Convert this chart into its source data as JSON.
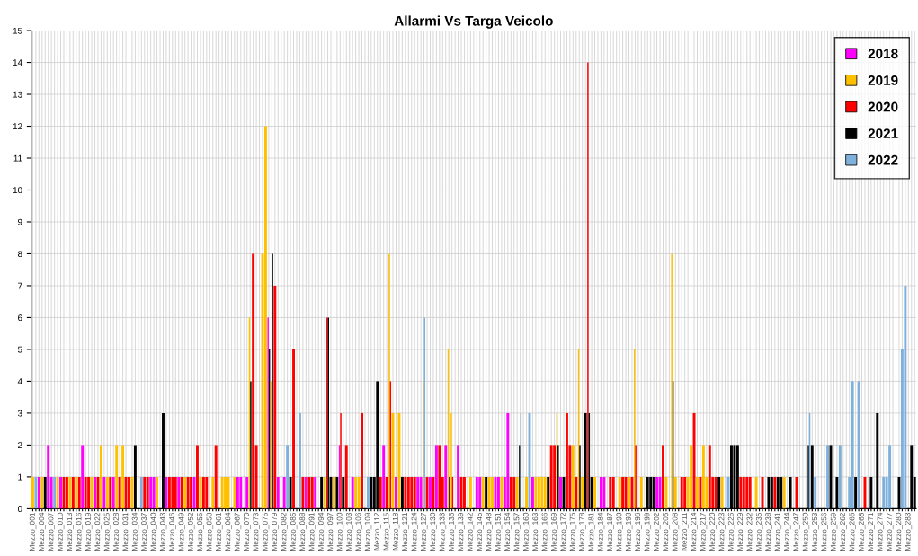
{
  "chart_data": {
    "type": "bar",
    "title": "Allarmi Vs Targa Veicolo",
    "categories": [
      "Mezzo_001",
      null,
      null,
      "Mezzo_004",
      null,
      null,
      "Mezzo_007",
      null,
      null,
      "Mezzo_010",
      null,
      null,
      "Mezzo_013",
      null,
      null,
      "Mezzo_016",
      null,
      null,
      "Mezzo_019",
      null,
      null,
      "Mezzo_022",
      null,
      null,
      "Mezzo_025",
      null,
      null,
      "Mezzo_028",
      null,
      null,
      "Mezzo_031",
      null,
      null,
      "Mezzo_034",
      null,
      null,
      "Mezzo_037",
      null,
      null,
      "Mezzo_040",
      null,
      null,
      "Mezzo_043",
      null,
      null,
      "Mezzo_046",
      null,
      null,
      "Mezzo_049",
      null,
      null,
      "Mezzo_052",
      null,
      null,
      "Mezzo_055",
      null,
      null,
      "Mezzo_058",
      null,
      null,
      "Mezzo_061",
      null,
      null,
      "Mezzo_064",
      null,
      null,
      "Mezzo_067",
      null,
      null,
      "Mezzo_070",
      null,
      null,
      "Mezzo_073",
      null,
      null,
      "Mezzo_076",
      null,
      null,
      "Mezzo_079",
      null,
      null,
      "Mezzo_082",
      null,
      null,
      "Mezzo_085",
      null,
      null,
      "Mezzo_088",
      null,
      null,
      "Mezzo_091",
      null,
      null,
      "Mezzo_094",
      null,
      null,
      "Mezzo_097",
      null,
      null,
      "Mezzo_100",
      null,
      null,
      "Mezzo_103",
      null,
      null,
      "Mezzo_106",
      null,
      null,
      "Mezzo_109",
      null,
      null,
      "Mezzo_112",
      null,
      null,
      "Mezzo_115",
      null,
      null,
      "Mezzo_118",
      null,
      null,
      "Mezzo_121",
      null,
      null,
      "Mezzo_124",
      null,
      null,
      "Mezzo_127",
      null,
      null,
      "Mezzo_130",
      null,
      null,
      "Mezzo_133",
      null,
      null,
      "Mezzo_136",
      null,
      null,
      "Mezzo_139",
      null,
      null,
      "Mezzo_142",
      null,
      null,
      "Mezzo_145",
      null,
      null,
      "Mezzo_148",
      null,
      null,
      "Mezzo_151",
      null,
      null,
      "Mezzo_154",
      null,
      null,
      "Mezzo_157",
      null,
      null,
      "Mezzo_160",
      null,
      null,
      "Mezzo_163",
      null,
      null,
      "Mezzo_166",
      null,
      null,
      "Mezzo_169",
      null,
      null,
      "Mezzo_172",
      null,
      null,
      "Mezzo_175",
      null,
      null,
      "Mezzo_178",
      null,
      null,
      "Mezzo_181",
      null,
      null,
      "Mezzo_184",
      null,
      null,
      "Mezzo_187",
      null,
      null,
      "Mezzo_190",
      null,
      null,
      "Mezzo_193",
      null,
      null,
      "Mezzo_196",
      null,
      null,
      "Mezzo_199",
      null,
      null,
      "Mezzo_202",
      null,
      null,
      "Mezzo_205",
      null,
      null,
      "Mezzo_208",
      null,
      null,
      "Mezzo_211",
      null,
      null,
      "Mezzo_214",
      null,
      null,
      "Mezzo_217",
      null,
      null,
      "Mezzo_220",
      null,
      null,
      "Mezzo_223",
      null,
      null,
      "Mezzo_226",
      null,
      null,
      "Mezzo_229",
      null,
      null,
      "Mezzo_232",
      null,
      null,
      "Mezzo_235",
      null,
      null,
      "Mezzo_238",
      null,
      null,
      "Mezzo_241",
      null,
      null,
      "Mezzo_244",
      null,
      null,
      "Mezzo_247",
      null,
      null,
      "Mezzo_250",
      null,
      null,
      "Mezzo_253",
      null,
      null,
      "Mezzo_256",
      null,
      null,
      "Mezzo_259",
      null,
      null,
      "Mezzo_262",
      null,
      null,
      "Mezzo_265",
      null,
      null,
      "Mezzo_268",
      null,
      null,
      "Mezzo_271",
      null,
      null,
      "Mezzo_274",
      null,
      null,
      "Mezzo_277",
      null,
      null,
      "Mezzo_280",
      null,
      null,
      "Mezzo_283",
      null,
      null
    ],
    "series": [
      {
        "name": "2018",
        "color": "#ff00ff",
        "values": [
          null,
          null,
          1,
          null,
          null,
          2,
          1,
          null,
          null,
          1,
          null,
          null,
          null,
          null,
          null,
          null,
          2,
          null,
          null,
          null,
          1,
          null,
          null,
          1,
          null,
          null,
          1,
          null,
          null,
          null,
          null,
          null,
          null,
          null,
          null,
          null,
          null,
          null,
          1,
          1,
          null,
          null,
          null,
          1,
          null,
          null,
          null,
          1,
          null,
          null,
          null,
          null,
          1,
          null,
          null,
          null,
          null,
          null,
          null,
          null,
          null,
          null,
          null,
          null,
          null,
          null,
          1,
          1,
          null,
          1,
          null,
          null,
          null,
          null,
          null,
          null,
          6,
          null,
          null,
          1,
          null,
          1,
          null,
          null,
          null,
          null,
          null,
          null,
          1,
          null,
          null,
          1,
          null,
          null,
          null,
          null,
          null,
          null,
          null,
          2,
          null,
          null,
          null,
          1,
          null,
          null,
          null,
          null,
          null,
          null,
          null,
          null,
          null,
          2,
          null,
          null,
          null,
          1,
          null,
          null,
          null,
          null,
          null,
          null,
          1,
          1,
          null,
          null,
          1,
          null,
          2,
          null,
          null,
          2,
          null,
          null,
          null,
          2,
          null,
          null,
          null,
          null,
          null,
          1,
          1,
          null,
          null,
          null,
          null,
          1,
          1,
          null,
          1,
          3,
          null,
          null,
          null,
          null,
          null,
          null,
          null,
          1,
          null,
          null,
          null,
          null,
          null,
          null,
          null,
          null,
          1,
          null,
          null,
          null,
          null,
          null,
          null,
          null,
          null,
          null,
          null,
          null,
          null,
          1,
          1,
          null,
          null,
          null,
          null,
          null,
          null,
          null,
          null,
          null,
          null,
          null,
          null,
          null,
          null,
          null,
          null,
          1,
          1,
          null,
          null,
          null,
          null,
          null,
          null,
          null,
          null,
          null,
          null,
          null,
          null,
          null,
          null,
          null,
          null,
          null,
          null,
          null,
          null,
          null,
          null,
          null,
          null,
          null,
          null,
          null,
          null,
          null,
          null,
          null,
          null,
          null,
          null,
          null,
          null,
          null,
          null,
          null,
          null,
          null,
          null,
          null,
          null,
          null,
          null,
          null,
          null,
          null,
          null,
          null,
          null,
          null,
          null,
          null,
          null,
          null,
          null,
          null,
          null,
          null,
          null,
          null,
          null,
          null,
          null,
          null,
          null,
          null,
          null,
          null,
          null,
          null,
          null,
          null,
          null,
          null,
          null,
          null,
          null,
          null,
          null
        ]
      },
      {
        "name": "2019",
        "color": "#ffc000",
        "values": [
          1,
          null,
          null,
          1,
          null,
          null,
          null,
          null,
          1,
          null,
          null,
          null,
          1,
          null,
          1,
          null,
          null,
          null,
          null,
          1,
          null,
          null,
          2,
          null,
          1,
          null,
          null,
          2,
          null,
          2,
          null,
          null,
          1,
          null,
          null,
          null,
          null,
          null,
          null,
          null,
          1,
          null,
          null,
          null,
          null,
          null,
          null,
          null,
          null,
          1,
          null,
          null,
          null,
          null,
          1,
          null,
          null,
          null,
          1,
          null,
          null,
          1,
          1,
          1,
          null,
          1,
          null,
          null,
          null,
          null,
          6,
          null,
          null,
          null,
          8,
          12,
          null,
          4,
          null,
          null,
          null,
          null,
          null,
          null,
          null,
          null,
          null,
          null,
          null,
          null,
          null,
          null,
          null,
          null,
          1,
          null,
          null,
          1,
          null,
          null,
          null,
          null,
          null,
          null,
          1,
          1,
          null,
          null,
          null,
          null,
          null,
          null,
          null,
          null,
          null,
          8,
          3,
          null,
          3,
          null,
          null,
          null,
          null,
          null,
          null,
          null,
          4,
          null,
          null,
          null,
          null,
          null,
          null,
          null,
          5,
          3,
          null,
          null,
          null,
          null,
          null,
          1,
          null,
          null,
          null,
          1,
          null,
          1,
          1,
          null,
          null,
          1,
          null,
          null,
          null,
          null,
          1,
          null,
          null,
          1,
          null,
          null,
          1,
          1,
          1,
          1,
          null,
          null,
          null,
          3,
          null,
          null,
          null,
          null,
          2,
          null,
          5,
          1,
          null,
          null,
          null,
          1,
          null,
          null,
          null,
          null,
          null,
          null,
          null,
          1,
          null,
          null,
          1,
          null,
          5,
          null,
          1,
          null,
          null,
          null,
          null,
          null,
          null,
          null,
          1,
          null,
          8,
          1,
          null,
          null,
          null,
          1,
          2,
          null,
          1,
          null,
          2,
          1,
          null,
          null,
          null,
          null,
          1,
          null,
          null,
          null,
          null,
          null,
          null,
          null,
          null,
          null,
          null,
          1,
          null,
          null,
          null,
          null,
          null,
          null,
          null,
          null,
          1,
          null,
          null,
          null,
          null,
          null,
          null,
          null,
          null,
          null,
          null,
          null,
          null,
          null,
          null,
          null,
          null,
          null,
          null,
          null,
          null,
          null,
          null,
          null,
          null,
          null,
          null,
          null,
          null,
          null,
          null,
          null,
          null,
          null,
          null,
          null,
          null,
          null,
          null,
          null,
          null,
          null,
          null
        ]
      },
      {
        "name": "2020",
        "color": "#ff0000",
        "values": [
          null,
          null,
          null,
          null,
          null,
          null,
          null,
          null,
          null,
          null,
          1,
          1,
          null,
          1,
          null,
          1,
          null,
          1,
          1,
          null,
          null,
          1,
          null,
          null,
          null,
          1,
          null,
          null,
          1,
          null,
          1,
          1,
          null,
          null,
          null,
          null,
          1,
          1,
          null,
          null,
          null,
          null,
          null,
          null,
          1,
          1,
          1,
          null,
          1,
          null,
          1,
          1,
          null,
          2,
          null,
          1,
          1,
          null,
          null,
          2,
          null,
          null,
          null,
          null,
          null,
          null,
          null,
          null,
          null,
          null,
          null,
          8,
          2,
          null,
          null,
          null,
          null,
          null,
          7,
          null,
          null,
          null,
          null,
          null,
          5,
          null,
          null,
          1,
          null,
          1,
          1,
          null,
          null,
          null,
          null,
          6,
          null,
          null,
          null,
          3,
          null,
          2,
          null,
          null,
          null,
          null,
          3,
          null,
          null,
          null,
          null,
          null,
          1,
          null,
          1,
          4,
          null,
          null,
          null,
          null,
          1,
          1,
          1,
          1,
          null,
          null,
          null,
          1,
          null,
          1,
          null,
          2,
          1,
          null,
          null,
          1,
          null,
          null,
          1,
          1,
          null,
          null,
          null,
          null,
          null,
          null,
          null,
          null,
          null,
          null,
          null,
          null,
          null,
          null,
          1,
          1,
          null,
          null,
          null,
          null,
          null,
          null,
          null,
          null,
          null,
          null,
          null,
          2,
          2,
          null,
          null,
          null,
          3,
          2,
          null,
          1,
          null,
          null,
          null,
          14,
          null,
          null,
          null,
          null,
          null,
          null,
          1,
          1,
          null,
          null,
          1,
          1,
          null,
          1,
          2,
          null,
          null,
          null,
          null,
          null,
          null,
          null,
          null,
          2,
          null,
          null,
          null,
          null,
          null,
          1,
          1,
          null,
          null,
          3,
          null,
          1,
          null,
          null,
          2,
          1,
          1,
          null,
          null,
          null,
          null,
          null,
          null,
          null,
          1,
          1,
          1,
          1,
          null,
          null,
          null,
          1,
          null,
          null,
          null,
          1,
          null,
          null,
          null,
          null,
          null,
          null,
          1,
          null,
          null,
          null,
          null,
          null,
          null,
          null,
          null,
          null,
          null,
          null,
          null,
          null,
          null,
          null,
          null,
          null,
          null,
          null,
          null,
          null,
          1,
          null,
          null,
          null,
          null,
          null,
          null,
          null,
          null,
          null,
          null,
          null,
          null,
          null,
          null,
          null,
          null
        ]
      },
      {
        "name": "2021",
        "color": "#000000",
        "values": [
          null,
          null,
          null,
          null,
          1,
          null,
          null,
          null,
          null,
          null,
          null,
          null,
          null,
          null,
          null,
          null,
          null,
          null,
          null,
          null,
          null,
          null,
          null,
          null,
          null,
          null,
          null,
          null,
          null,
          null,
          null,
          null,
          null,
          2,
          null,
          null,
          null,
          null,
          null,
          null,
          null,
          null,
          3,
          null,
          null,
          null,
          null,
          null,
          null,
          null,
          null,
          null,
          null,
          null,
          null,
          null,
          null,
          null,
          null,
          null,
          null,
          null,
          null,
          null,
          null,
          null,
          null,
          null,
          null,
          null,
          4,
          null,
          null,
          null,
          null,
          null,
          5,
          8,
          null,
          null,
          null,
          null,
          null,
          1,
          null,
          null,
          null,
          null,
          null,
          null,
          null,
          null,
          null,
          1,
          null,
          6,
          1,
          null,
          1,
          null,
          1,
          null,
          null,
          null,
          null,
          null,
          null,
          null,
          null,
          1,
          1,
          4,
          null,
          null,
          null,
          null,
          null,
          null,
          null,
          1,
          null,
          null,
          null,
          null,
          null,
          null,
          null,
          null,
          null,
          null,
          null,
          null,
          null,
          null,
          1,
          null,
          null,
          null,
          null,
          null,
          null,
          null,
          null,
          null,
          null,
          null,
          1,
          null,
          null,
          null,
          null,
          null,
          null,
          null,
          null,
          null,
          null,
          2,
          null,
          null,
          null,
          null,
          null,
          null,
          null,
          null,
          1,
          null,
          null,
          2,
          null,
          1,
          null,
          null,
          null,
          null,
          2,
          null,
          3,
          3,
          1,
          null,
          null,
          null,
          null,
          null,
          null,
          null,
          null,
          null,
          null,
          null,
          null,
          null,
          null,
          null,
          null,
          null,
          1,
          1,
          1,
          null,
          null,
          null,
          null,
          null,
          4,
          null,
          null,
          null,
          null,
          null,
          null,
          null,
          null,
          null,
          null,
          null,
          null,
          null,
          null,
          1,
          null,
          null,
          null,
          2,
          2,
          2,
          null,
          null,
          null,
          null,
          null,
          null,
          null,
          null,
          null,
          1,
          1,
          null,
          1,
          1,
          null,
          null,
          1,
          null,
          null,
          null,
          null,
          null,
          2,
          2,
          null,
          null,
          null,
          null,
          null,
          2,
          null,
          1,
          null,
          null,
          null,
          null,
          null,
          1,
          null,
          null,
          null,
          null,
          1,
          null,
          3,
          null,
          null,
          null,
          null,
          null,
          null,
          1,
          null,
          null,
          null,
          2,
          1
        ]
      },
      {
        "name": "2022",
        "color": "#7fb0dc",
        "values": [
          null,
          1,
          null,
          null,
          null,
          null,
          null,
          1,
          null,
          null,
          null,
          null,
          null,
          null,
          null,
          null,
          null,
          null,
          null,
          null,
          null,
          null,
          null,
          null,
          null,
          null,
          null,
          null,
          null,
          null,
          null,
          null,
          null,
          null,
          null,
          1,
          null,
          null,
          null,
          null,
          null,
          null,
          null,
          null,
          null,
          null,
          null,
          null,
          null,
          null,
          null,
          null,
          null,
          null,
          null,
          null,
          null,
          null,
          null,
          null,
          null,
          null,
          null,
          null,
          null,
          null,
          null,
          null,
          null,
          null,
          null,
          null,
          null,
          null,
          null,
          null,
          null,
          null,
          null,
          null,
          null,
          null,
          2,
          null,
          null,
          null,
          3,
          null,
          null,
          null,
          null,
          null,
          null,
          null,
          null,
          null,
          null,
          null,
          null,
          null,
          null,
          null,
          null,
          null,
          null,
          null,
          null,
          null,
          1,
          null,
          null,
          null,
          null,
          null,
          null,
          null,
          null,
          null,
          null,
          null,
          null,
          null,
          null,
          null,
          null,
          null,
          6,
          null,
          null,
          null,
          null,
          null,
          null,
          null,
          null,
          null,
          null,
          null,
          null,
          null,
          null,
          null,
          null,
          null,
          null,
          null,
          null,
          null,
          null,
          null,
          null,
          null,
          null,
          null,
          null,
          null,
          null,
          3,
          null,
          null,
          3,
          null,
          null,
          null,
          null,
          null,
          null,
          null,
          null,
          null,
          null,
          null,
          null,
          null,
          null,
          null,
          null,
          null,
          null,
          null,
          null,
          null,
          null,
          null,
          null,
          null,
          null,
          null,
          null,
          null,
          null,
          null,
          null,
          null,
          null,
          null,
          null,
          null,
          null,
          null,
          null,
          null,
          null,
          null,
          null,
          null,
          null,
          null,
          null,
          null,
          null,
          null,
          null,
          null,
          null,
          null,
          null,
          null,
          null,
          null,
          null,
          null,
          null,
          null,
          1,
          null,
          null,
          null,
          null,
          null,
          null,
          null,
          null,
          null,
          null,
          null,
          null,
          null,
          null,
          null,
          null,
          null,
          null,
          null,
          null,
          null,
          null,
          null,
          null,
          null,
          3,
          null,
          1,
          null,
          null,
          null,
          2,
          null,
          null,
          null,
          2,
          null,
          null,
          1,
          4,
          null,
          4,
          null,
          null,
          null,
          null,
          null,
          null,
          null,
          1,
          1,
          2,
          null,
          null,
          null,
          5,
          7,
          null,
          null,
          null
        ]
      }
    ],
    "ylim": [
      0,
      15
    ],
    "yticks": [
      0,
      1,
      2,
      3,
      4,
      5,
      6,
      7,
      8,
      9,
      10,
      11,
      12,
      13,
      14,
      15
    ],
    "grid": true,
    "legend": "top right"
  }
}
